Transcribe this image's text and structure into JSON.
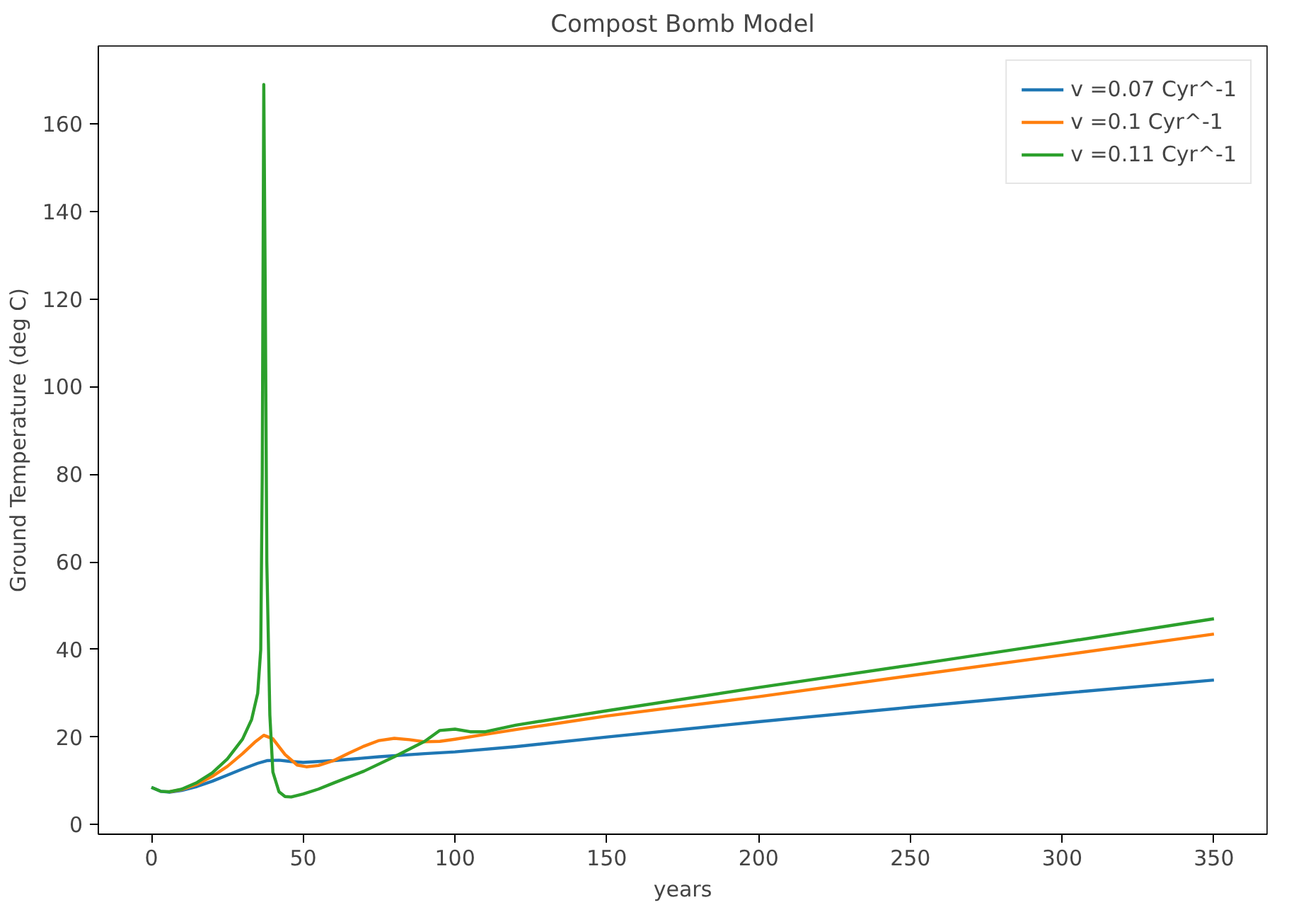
{
  "chart_data": {
    "type": "line",
    "title": "Compost Bomb Model",
    "xlabel": "years",
    "ylabel": "Ground Temperature (deg C)",
    "xlim": [
      -17.5,
      367.5
    ],
    "ylim": [
      -2.2,
      177.8
    ],
    "xticks": [
      0,
      50,
      100,
      150,
      200,
      250,
      300,
      350
    ],
    "yticks": [
      0,
      20,
      40,
      60,
      80,
      100,
      120,
      140,
      160
    ],
    "grid": false,
    "legend": "top right",
    "line_style": "solid",
    "marker": "none",
    "series": [
      {
        "name": "v =0.07 Cyr^-1",
        "color": "#1f77b4",
        "x": [
          0,
          3,
          6,
          10,
          15,
          20,
          25,
          30,
          35,
          38,
          42,
          46,
          50,
          60,
          75,
          90,
          100,
          120,
          150,
          200,
          250,
          300,
          350
        ],
        "values": [
          8.5,
          7.6,
          7.4,
          7.8,
          8.7,
          9.9,
          11.3,
          12.7,
          14.0,
          14.6,
          14.7,
          14.4,
          14.2,
          14.6,
          15.5,
          16.2,
          16.6,
          17.8,
          20.0,
          23.5,
          26.8,
          30.0,
          33.0
        ]
      },
      {
        "name": "v =0.1 Cyr^-1",
        "color": "#ff7f0e",
        "x": [
          6,
          10,
          15,
          20,
          25,
          30,
          34,
          37,
          40,
          44,
          48,
          51,
          55,
          60,
          65,
          70,
          75,
          80,
          85,
          90,
          95,
          100,
          110,
          120,
          150,
          200,
          250,
          300,
          350
        ],
        "values": [
          7.5,
          8.0,
          9.2,
          11.0,
          13.3,
          16.2,
          18.8,
          20.4,
          19.6,
          16.0,
          13.6,
          13.2,
          13.5,
          14.6,
          16.3,
          17.9,
          19.2,
          19.7,
          19.4,
          18.9,
          19.0,
          19.5,
          20.6,
          21.7,
          24.8,
          29.2,
          34.0,
          38.7,
          43.5
        ]
      },
      {
        "name": "v =0.11 Cyr^-1",
        "color": "#2ca02c",
        "x": [
          0,
          3,
          6,
          10,
          15,
          20,
          25,
          30,
          33,
          35,
          36,
          36.5,
          37,
          37.5,
          38,
          39,
          40,
          42,
          44,
          46,
          50,
          55,
          60,
          70,
          80,
          90,
          95,
          100,
          105,
          110,
          120,
          150,
          200,
          250,
          300,
          350
        ],
        "values": [
          8.5,
          7.6,
          7.5,
          8.1,
          9.6,
          11.8,
          15.0,
          19.5,
          24.0,
          30.0,
          40.0,
          80.0,
          169.0,
          120.0,
          60.0,
          25.0,
          12.0,
          7.5,
          6.4,
          6.3,
          7.0,
          8.1,
          9.5,
          12.2,
          15.5,
          19.0,
          21.5,
          21.8,
          21.2,
          21.2,
          22.7,
          26.0,
          31.3,
          36.4,
          41.6,
          47.0
        ]
      }
    ]
  }
}
